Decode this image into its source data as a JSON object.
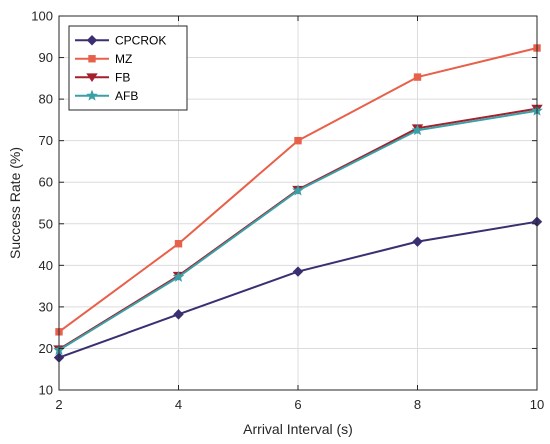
{
  "chart_data": {
    "type": "line",
    "xlabel": "Arrival Interval (s)",
    "ylabel": "Success Rate (%)",
    "x": [
      2,
      4,
      6,
      8,
      10
    ],
    "xlim": [
      2,
      10
    ],
    "ylim": [
      10,
      100
    ],
    "xticks": [
      "2",
      "4",
      "6",
      "8",
      "10"
    ],
    "yticks": [
      "10",
      "20",
      "30",
      "40",
      "50",
      "60",
      "70",
      "80",
      "90",
      "100"
    ],
    "grid": true,
    "legend_position": "top-left",
    "series": [
      {
        "name": "CPCROK",
        "color": "#3b2f72",
        "marker": "diamond",
        "values": [
          17.8,
          28.2,
          38.5,
          45.7,
          50.5
        ]
      },
      {
        "name": "MZ",
        "color": "#e8604a",
        "marker": "square",
        "values": [
          24.0,
          45.2,
          70.0,
          85.3,
          92.3
        ]
      },
      {
        "name": "FB",
        "color": "#a3202c",
        "marker": "triangle-down",
        "values": [
          19.8,
          37.5,
          58.2,
          73.0,
          77.7
        ]
      },
      {
        "name": "AFB",
        "color": "#3aa0a8",
        "marker": "star",
        "values": [
          19.6,
          37.2,
          58.0,
          72.5,
          77.2
        ]
      }
    ]
  }
}
